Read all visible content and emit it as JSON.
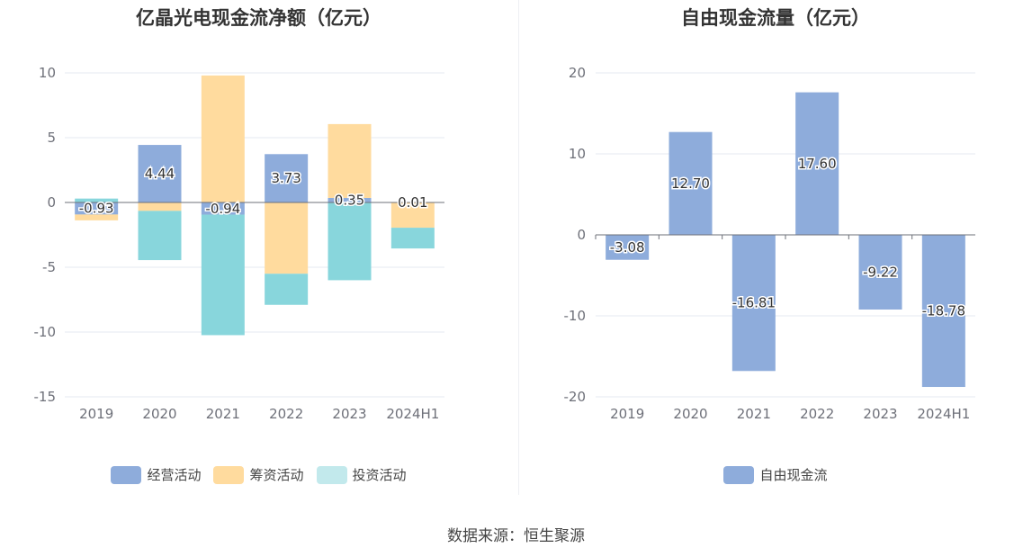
{
  "source": "数据来源：恒生聚源",
  "chart_data": [
    {
      "type": "bar",
      "stacked": true,
      "title": "亿晶光电现金流净额（亿元）",
      "categories": [
        "2019",
        "2020",
        "2021",
        "2022",
        "2023",
        "2024H1"
      ],
      "ylim": [
        -15,
        10
      ],
      "yticks": [
        "10",
        "5",
        "0",
        "-5",
        "-10",
        "-15"
      ],
      "grid": true,
      "legend_position": "bottom",
      "series": [
        {
          "name": "经营活动",
          "color": "#8eacdb",
          "values": [
            -0.93,
            4.44,
            -0.94,
            3.73,
            0.35,
            0.01
          ],
          "labels": [
            "-0.93",
            "4.44",
            "-0.94",
            "3.73",
            "0.35",
            "0.01"
          ]
        },
        {
          "name": "筹资活动",
          "color": "#ffdb9e",
          "values": [
            -0.45,
            -0.65,
            9.8,
            -5.5,
            5.7,
            -1.95
          ],
          "labels": []
        },
        {
          "name": "投资活动",
          "color": "#88d6dc",
          "legend_color": "#c2e9ec",
          "values": [
            0.3,
            -3.8,
            -9.3,
            -2.4,
            -6.0,
            -1.6
          ],
          "labels": []
        }
      ]
    },
    {
      "type": "bar",
      "title": "自由现金流量（亿元）",
      "categories": [
        "2019",
        "2020",
        "2021",
        "2022",
        "2023",
        "2024H1"
      ],
      "ylim": [
        -20,
        20
      ],
      "yticks": [
        "20",
        "10",
        "0",
        "-10",
        "-20"
      ],
      "grid": true,
      "legend_position": "bottom",
      "series": [
        {
          "name": "自由现金流",
          "color": "#8eacdb",
          "values": [
            -3.08,
            12.7,
            -16.81,
            17.6,
            -9.22,
            -18.78
          ],
          "labels": [
            "-3.08",
            "12.70",
            "-16.81",
            "17.60",
            "-9.22",
            "-18.78"
          ]
        }
      ]
    }
  ]
}
